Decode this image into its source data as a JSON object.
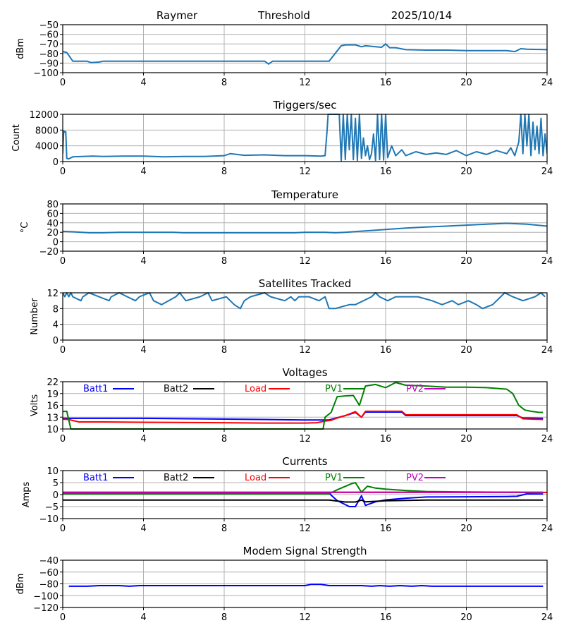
{
  "header": {
    "station": "Raymer",
    "mode": "Threshold",
    "date": "2025/10/14"
  },
  "chart_data": [
    {
      "id": "threshold",
      "type": "line",
      "title": "",
      "ylabel": "dBm",
      "ylim": [
        -100,
        -50
      ],
      "yticks": [
        -50,
        -60,
        -70,
        -80,
        -90,
        -100
      ],
      "xlim": [
        0,
        24
      ],
      "xticks": [
        0,
        4,
        8,
        12,
        16,
        20,
        24
      ],
      "grid": true,
      "series": [
        {
          "name": "Threshold",
          "color": "#1f77b4",
          "x": [
            0,
            0.2,
            0.5,
            1.2,
            1.4,
            1.8,
            2,
            4,
            6,
            8,
            10,
            10.2,
            10.4,
            11,
            12,
            13.2,
            13.5,
            13.8,
            14,
            14.5,
            14.8,
            15,
            15.5,
            15.8,
            16,
            16.2,
            16.5,
            17,
            18,
            19,
            20,
            21,
            22,
            22.4,
            22.7,
            23,
            24
          ],
          "values": [
            -78,
            -79,
            -88,
            -88,
            -89.5,
            -89,
            -88,
            -88,
            -88,
            -88,
            -88,
            -91,
            -88,
            -88,
            -88,
            -88,
            -80,
            -72,
            -71,
            -71,
            -73,
            -72,
            -73,
            -73.5,
            -70,
            -74,
            -74,
            -76,
            -76.5,
            -76.5,
            -77,
            -77,
            -77,
            -78,
            -75,
            -75.5,
            -76
          ]
        }
      ]
    },
    {
      "id": "triggers",
      "type": "line",
      "title": "Triggers/sec",
      "ylabel": "Count",
      "ylim": [
        0,
        12000
      ],
      "yticks": [
        0,
        4000,
        8000,
        12000
      ],
      "xlim": [
        0,
        24
      ],
      "xticks": [
        0,
        4,
        8,
        12,
        16,
        20,
        24
      ],
      "grid": true,
      "series": [
        {
          "name": "Triggers",
          "color": "#1f77b4",
          "x": [
            0,
            0.05,
            0.1,
            0.15,
            0.2,
            0.3,
            0.5,
            1,
            1.5,
            2,
            3,
            4,
            5,
            6,
            7,
            8,
            8.3,
            9,
            10,
            11,
            12,
            12.8,
            13,
            13.1,
            13.15,
            13.3,
            13.5,
            13.7,
            13.8,
            13.9,
            14.0,
            14.1,
            14.2,
            14.3,
            14.4,
            14.5,
            14.6,
            14.7,
            14.8,
            14.9,
            15.0,
            15.1,
            15.2,
            15.3,
            15.4,
            15.5,
            15.6,
            15.7,
            15.8,
            15.9,
            16.0,
            16.1,
            16.3,
            16.5,
            16.8,
            17,
            17.5,
            18,
            18.5,
            19,
            19.5,
            20,
            20.5,
            21,
            21.5,
            22,
            22.2,
            22.4,
            22.6,
            22.7,
            22.8,
            22.9,
            23.0,
            23.1,
            23.2,
            23.3,
            23.4,
            23.5,
            23.6,
            23.7,
            23.8,
            23.9,
            24
          ],
          "values": [
            2000,
            7800,
            7500,
            7600,
            800,
            700,
            1200,
            1300,
            1400,
            1300,
            1400,
            1400,
            1200,
            1300,
            1300,
            1500,
            2000,
            1600,
            1700,
            1500,
            1500,
            1400,
            1500,
            8000,
            12000,
            12000,
            12000,
            12000,
            200,
            12000,
            500,
            12000,
            3000,
            12000,
            500,
            11000,
            300,
            12000,
            800,
            6000,
            1500,
            4000,
            500,
            2000,
            7000,
            300,
            12000,
            500,
            12000,
            400,
            12000,
            1000,
            4000,
            1500,
            3000,
            1500,
            2500,
            1800,
            2200,
            1800,
            2800,
            1500,
            2500,
            1800,
            2800,
            2000,
            3500,
            1500,
            5000,
            12000,
            2000,
            12000,
            4000,
            12000,
            1500,
            10000,
            3000,
            9000,
            2000,
            11000,
            1500,
            7000,
            2000
          ]
        }
      ]
    },
    {
      "id": "temperature",
      "type": "line",
      "title": "Temperature",
      "ylabel": "°C",
      "ylim": [
        -20,
        80
      ],
      "yticks": [
        80,
        60,
        40,
        20,
        0,
        -20
      ],
      "xlim": [
        0,
        24
      ],
      "xticks": [
        0,
        4,
        8,
        12,
        16,
        20,
        24
      ],
      "grid": true,
      "series": [
        {
          "name": "Temperature",
          "color": "#1f77b4",
          "x": [
            0,
            0.5,
            1.3,
            2,
            2.8,
            4,
            5.5,
            6,
            8,
            10,
            11.5,
            12,
            13,
            13.5,
            14,
            15,
            16,
            17,
            18,
            19,
            20,
            21,
            22,
            23,
            24
          ],
          "values": [
            22,
            21,
            19,
            19,
            20,
            20,
            20,
            19,
            19,
            19,
            19,
            20,
            20,
            19,
            20,
            23,
            26,
            29,
            31,
            33,
            35,
            37,
            39,
            37,
            33
          ]
        }
      ]
    },
    {
      "id": "satellites",
      "type": "line",
      "title": "Satellites Tracked",
      "ylabel": "Number",
      "ylim": [
        0,
        12
      ],
      "yticks": [
        12,
        8,
        4,
        0
      ],
      "xlim": [
        0,
        24
      ],
      "xticks": [
        0,
        4,
        8,
        12,
        16,
        20,
        24
      ],
      "grid": true,
      "series": [
        {
          "name": "Satellites",
          "color": "#1f77b4",
          "x": [
            0,
            0.1,
            0.2,
            0.3,
            0.4,
            0.5,
            0.9,
            1.0,
            1.3,
            2.3,
            2.4,
            2.8,
            3.2,
            3.6,
            3.8,
            4.3,
            4.5,
            4.9,
            5.6,
            5.8,
            6.1,
            6.8,
            7.2,
            7.4,
            8.1,
            8.5,
            8.8,
            9.0,
            9.3,
            10.0,
            10.3,
            11,
            11.3,
            11.5,
            11.7,
            12.2,
            12.7,
            13.0,
            13.2,
            13.5,
            14.2,
            14.5,
            15.3,
            15.5,
            15.7,
            16.1,
            16.5,
            17.0,
            17.6,
            18.3,
            18.8,
            19.3,
            19.6,
            20.1,
            20.5,
            20.8,
            21.3,
            21.7,
            21.9,
            22.3,
            22.8,
            23.4,
            23.7,
            23.9
          ],
          "values": [
            12,
            11,
            12,
            11,
            12,
            11,
            10,
            11,
            12,
            10,
            11,
            12,
            11,
            10,
            11,
            12,
            10,
            9,
            11,
            12,
            10,
            11,
            12,
            10,
            11,
            9,
            8,
            10,
            11,
            12,
            11,
            10,
            11,
            10,
            11,
            11,
            10,
            11,
            8,
            8,
            9,
            9,
            11,
            12,
            11,
            10,
            11,
            11,
            11,
            10,
            9,
            10,
            9,
            10,
            9,
            8,
            9,
            11,
            12,
            11,
            10,
            11,
            12,
            11
          ]
        }
      ]
    },
    {
      "id": "voltages",
      "type": "line",
      "title": "Voltages",
      "ylabel": "Volts",
      "ylim": [
        10,
        22
      ],
      "yticks": [
        22,
        19,
        16,
        13,
        10
      ],
      "xlim": [
        0,
        24
      ],
      "xticks": [
        0,
        4,
        8,
        12,
        16,
        20,
        24
      ],
      "grid": true,
      "legend": "top (inline)",
      "series": [
        {
          "name": "Batt1",
          "color": "#0000ff",
          "x": [
            0,
            4,
            8,
            12,
            12.8,
            13.2,
            13.5,
            14,
            14.5,
            14.8,
            15,
            16,
            16.8,
            17,
            18,
            20,
            22,
            22.5,
            22.8,
            23.8
          ],
          "values": [
            12.7,
            12.7,
            12.5,
            12.3,
            12.3,
            12.3,
            12.7,
            13.4,
            14.2,
            13.0,
            14.3,
            14.3,
            14.3,
            13.4,
            13.4,
            13.4,
            13.4,
            13.4,
            12.8,
            12.7
          ]
        },
        {
          "name": "Batt2",
          "color": "#000000",
          "x": [],
          "values": []
        },
        {
          "name": "Load",
          "color": "#ff0000",
          "x": [
            0,
            0.3,
            0.8,
            2,
            4,
            8,
            10,
            12,
            12.6,
            13,
            13.3,
            13.6,
            14,
            14.5,
            14.8,
            15,
            16,
            16.8,
            17,
            18,
            20,
            22,
            22.5,
            22.8,
            23.8
          ],
          "values": [
            12.5,
            12.4,
            11.8,
            11.8,
            11.7,
            11.6,
            11.5,
            11.5,
            11.6,
            12.0,
            12.2,
            12.8,
            13.4,
            14.4,
            13.0,
            14.5,
            14.5,
            14.5,
            13.6,
            13.6,
            13.6,
            13.6,
            13.6,
            12.6,
            12.4
          ]
        },
        {
          "name": "PV1",
          "color": "#008000",
          "x": [
            0,
            0.2,
            0.4,
            12.9,
            13.0,
            13.3,
            13.6,
            14,
            14.4,
            14.7,
            15,
            15.5,
            16,
            16.5,
            17,
            18,
            19,
            20,
            21,
            22,
            22.3,
            22.6,
            22.9,
            23.2,
            23.6,
            23.8
          ],
          "values": [
            14.4,
            14.5,
            10,
            10,
            13.0,
            14.2,
            18.2,
            18.4,
            18.5,
            16.0,
            20.9,
            21.3,
            20.5,
            21.8,
            21.1,
            20.9,
            20.6,
            20.6,
            20.5,
            20.1,
            19.0,
            16.0,
            14.8,
            14.5,
            14.2,
            14.2
          ]
        },
        {
          "name": "PV2",
          "color": "#bf00bf",
          "x": [],
          "values": []
        }
      ]
    },
    {
      "id": "currents",
      "type": "line",
      "title": "Currents",
      "ylabel": "Amps",
      "ylim": [
        -10,
        10
      ],
      "yticks": [
        10,
        5,
        0,
        -5,
        -10
      ],
      "xlim": [
        0,
        24
      ],
      "xticks": [
        0,
        4,
        8,
        12,
        16,
        20,
        24
      ],
      "grid": true,
      "legend": "top (inline)",
      "series": [
        {
          "name": "Batt1",
          "color": "#0000ff",
          "x": [
            0,
            12,
            13.2,
            13.6,
            14.2,
            14.5,
            14.8,
            15,
            15.5,
            16,
            17,
            18,
            20,
            22,
            22.5,
            23,
            23.8
          ],
          "values": [
            0.5,
            0.5,
            0.5,
            -2.5,
            -5,
            -5,
            -0.5,
            -4.5,
            -3,
            -2.2,
            -1.5,
            -1.0,
            -0.9,
            -0.8,
            -0.7,
            0.3,
            0.3
          ]
        },
        {
          "name": "Batt2",
          "color": "#000000",
          "x": [
            0,
            12,
            13.2,
            14,
            14.5,
            14.8,
            15,
            16,
            18,
            20,
            22,
            23.8
          ],
          "values": [
            -2.3,
            -2.3,
            -2.3,
            -3.1,
            -3.1,
            -2.3,
            -3.0,
            -2.6,
            -2.3,
            -2.3,
            -2.3,
            -2.3
          ]
        },
        {
          "name": "Load",
          "color": "#ff0000",
          "x": [
            0,
            24
          ],
          "values": [
            0.9,
            0.9
          ]
        },
        {
          "name": "PV1",
          "color": "#008000",
          "x": [
            0,
            13.2,
            13.6,
            14.3,
            14.5,
            14.8,
            15.1,
            15.5,
            16,
            17,
            18,
            20,
            22,
            22.5,
            23,
            23.8
          ],
          "values": [
            0.3,
            0.3,
            2.0,
            4.5,
            5.0,
            1.0,
            3.5,
            2.7,
            2.3,
            1.7,
            1.3,
            1.1,
            1.0,
            1.0,
            0.8,
            0.6
          ]
        },
        {
          "name": "PV2",
          "color": "#bf00bf",
          "x": [
            0,
            23.8
          ],
          "values": [
            1.0,
            1.0
          ]
        }
      ]
    },
    {
      "id": "modem",
      "type": "line",
      "title": "Modem Signal Strength",
      "ylabel": "dBm",
      "ylim": [
        -120,
        -40
      ],
      "yticks": [
        -40,
        -60,
        -80,
        -100,
        -120
      ],
      "xlim": [
        0,
        24
      ],
      "xticks": [
        0,
        4,
        8,
        12,
        16,
        20,
        24
      ],
      "grid": true,
      "series": [
        {
          "name": "Modem",
          "color": "#0000ff",
          "x": [
            0.3,
            1.2,
            1.8,
            2.8,
            3.3,
            3.8,
            4,
            8,
            11.5,
            12,
            12.3,
            12.8,
            13.2,
            14,
            14.8,
            15.3,
            15.7,
            16.2,
            16.7,
            17.3,
            17.8,
            18.3,
            20,
            23.8
          ],
          "values": [
            -84,
            -84,
            -83,
            -83,
            -84,
            -83,
            -83,
            -83,
            -83,
            -83,
            -81,
            -81,
            -83,
            -83,
            -83,
            -84,
            -83,
            -84,
            -83,
            -84,
            -83,
            -84,
            -84,
            -84
          ]
        }
      ]
    }
  ]
}
